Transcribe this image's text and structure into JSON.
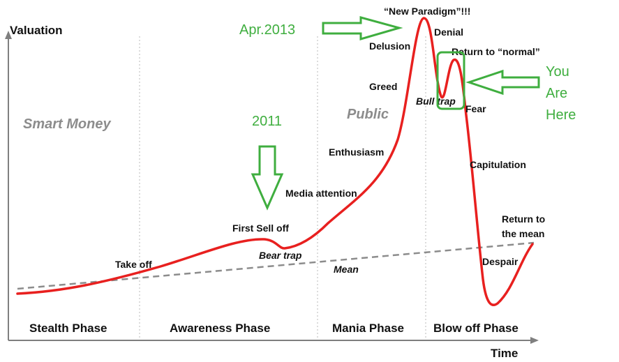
{
  "axes": {
    "y_title": "Valuation",
    "x_title": "Time"
  },
  "groups": {
    "smart_money": "Smart Money",
    "public": "Public"
  },
  "phases": [
    "Stealth Phase",
    "Awareness Phase",
    "Mania Phase",
    "Blow off Phase"
  ],
  "curve_labels": {
    "take_off": "Take off",
    "first_sell_off": "First Sell off",
    "bear_trap": "Bear trap",
    "media_attention": "Media attention",
    "enthusiasm": "Enthusiasm",
    "greed": "Greed",
    "delusion": "Delusion",
    "new_paradigm": "“New Paradigm”!!!",
    "denial": "Denial",
    "return_to_normal": "Return to “normal”",
    "bull_trap": "Bull trap",
    "fear": "Fear",
    "capitulation": "Capitulation",
    "despair": "Despair",
    "return_to_the_mean_1": "Return to",
    "return_to_the_mean_2": "the mean",
    "mean": "Mean"
  },
  "annotations": {
    "year_2011": "2011",
    "apr_2013": "Apr.2013",
    "you": "You",
    "are": "Are",
    "here": "Here"
  },
  "colors": {
    "curve": "#e8201f",
    "mean_line": "#8c8c8c",
    "annotation": "#3fae3f",
    "text": "#111111",
    "group_label": "#8c8c8c"
  }
}
